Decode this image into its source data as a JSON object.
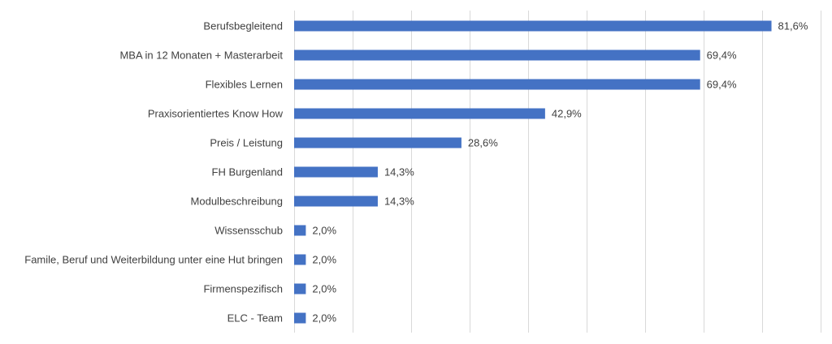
{
  "chart_data": {
    "type": "bar",
    "orientation": "horizontal",
    "categories": [
      "Berufsbegleitend",
      "MBA in 12 Monaten + Masterarbeit",
      "Flexibles Lernen",
      "Praxisorientiertes Know How",
      "Preis / Leistung",
      "FH Burgenland",
      "Modulbeschreibung",
      "Wissensschub",
      "Famile, Beruf und Weiterbildung unter eine Hut bringen",
      "Firmenspezifisch",
      "ELC - Team"
    ],
    "values": [
      81.6,
      69.4,
      69.4,
      42.9,
      28.6,
      14.3,
      14.3,
      2.0,
      2.0,
      2.0,
      2.0
    ],
    "value_labels": [
      "81,6%",
      "69,4%",
      "69,4%",
      "42,9%",
      "28,6%",
      "14,3%",
      "14,3%",
      "2,0%",
      "2,0%",
      "2,0%",
      "2,0%"
    ],
    "xlim": [
      0,
      90
    ],
    "x_gridlines": [
      0,
      10,
      20,
      30,
      40,
      50,
      60,
      70,
      80,
      90
    ],
    "grid": true,
    "legend": "none",
    "title": "",
    "xlabel": "",
    "ylabel": "",
    "bar_color": "#4472c4",
    "gridline_color": "#d9d9d9",
    "text_color": "#404040"
  }
}
